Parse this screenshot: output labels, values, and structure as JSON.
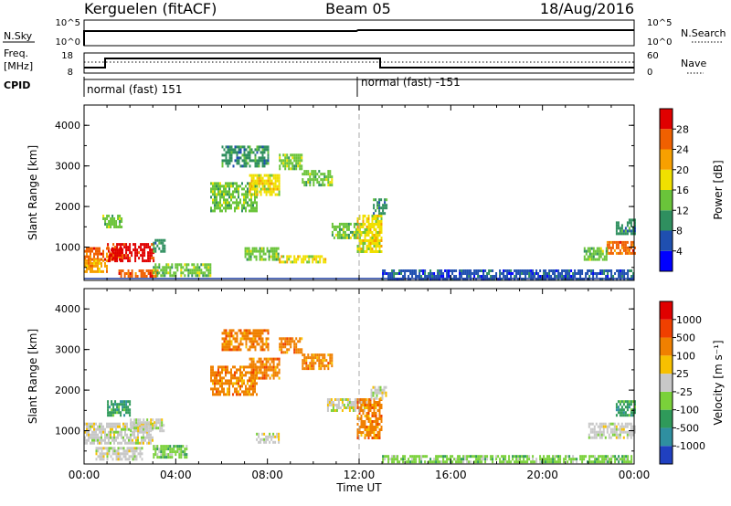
{
  "header": {
    "station": "Kerguelen (fitACF)",
    "beam": "Beam 05",
    "date": "18/Aug/2016"
  },
  "top_panels": {
    "nsky_label": "N.Sky",
    "nsky_ticks": [
      "10^5",
      "10^0"
    ],
    "nsearch_label": "N.Search",
    "nsearch_ticks": [
      "10^5",
      "10^0"
    ],
    "freq_label": "Freq.",
    "freq_unit": "[MHz]",
    "freq_ticks": [
      "18",
      "8"
    ],
    "nave_label": "Nave",
    "nave_ticks": [
      "60",
      "0"
    ],
    "cpid_label": "CPID",
    "cpid_segments": [
      {
        "label": "normal (fast) 151",
        "start_hour": 0
      },
      {
        "label": "normal (fast) -151",
        "start_hour": 12
      }
    ]
  },
  "chart_data": [
    {
      "type": "heatmap",
      "name": "power",
      "ylabel": "Slant Range [km]",
      "yticks": [
        "4000",
        "3000",
        "2000",
        "1000"
      ],
      "ylim": [
        180,
        4500
      ],
      "xlim": [
        0,
        24
      ],
      "colorbar": {
        "label": "Power [dB]",
        "ticks": [
          "28",
          "24",
          "20",
          "16",
          "12",
          "8",
          "4"
        ],
        "colors": [
          "#0000ff",
          "#1f4fb0",
          "#2f8f5f",
          "#6ac43a",
          "#f0e000",
          "#f7a000",
          "#f06000",
          "#e00000"
        ]
      },
      "patches": [
        {
          "h0": 0.0,
          "h1": 1.6,
          "r0": 700,
          "r1": 1000,
          "level": 6
        },
        {
          "h0": 1.0,
          "h1": 3.0,
          "r0": 650,
          "r1": 1100,
          "level": 7
        },
        {
          "h0": 0.0,
          "h1": 1.0,
          "r0": 400,
          "r1": 700,
          "level": 5
        },
        {
          "h0": 1.5,
          "h1": 3.2,
          "r0": 300,
          "r1": 450,
          "level": 6
        },
        {
          "h0": 3.0,
          "h1": 5.5,
          "r0": 300,
          "r1": 600,
          "level": 3
        },
        {
          "h0": 5.5,
          "h1": 7.5,
          "r0": 1900,
          "r1": 2600,
          "level": 3
        },
        {
          "h0": 7.2,
          "h1": 8.5,
          "r0": 2300,
          "r1": 2800,
          "level": 4
        },
        {
          "h0": 6.0,
          "h1": 8.0,
          "r0": 3000,
          "r1": 3500,
          "level": 2
        },
        {
          "h0": 8.5,
          "h1": 9.5,
          "r0": 2900,
          "r1": 3300,
          "level": 3
        },
        {
          "h0": 9.5,
          "h1": 10.8,
          "r0": 2500,
          "r1": 2900,
          "level": 3
        },
        {
          "h0": 7.0,
          "h1": 8.5,
          "r0": 700,
          "r1": 1000,
          "level": 3
        },
        {
          "h0": 8.5,
          "h1": 10.5,
          "r0": 600,
          "r1": 800,
          "level": 4
        },
        {
          "h0": 10.8,
          "h1": 12.0,
          "r0": 1200,
          "r1": 1600,
          "level": 3
        },
        {
          "h0": 11.9,
          "h1": 13.0,
          "r0": 900,
          "r1": 1800,
          "level": 4
        },
        {
          "h0": 12.6,
          "h1": 13.2,
          "r0": 1800,
          "r1": 2200,
          "level": 2
        },
        {
          "h0": 13.0,
          "h1": 24.0,
          "r0": 200,
          "r1": 450,
          "level": 1
        },
        {
          "h0": 22.8,
          "h1": 24.0,
          "r0": 850,
          "r1": 1150,
          "level": 6
        },
        {
          "h0": 21.8,
          "h1": 22.8,
          "r0": 700,
          "r1": 1000,
          "level": 3
        },
        {
          "h0": 23.2,
          "h1": 24.0,
          "r0": 1300,
          "r1": 1700,
          "level": 2
        },
        {
          "h0": 0.8,
          "h1": 1.6,
          "r0": 1500,
          "r1": 1800,
          "level": 3
        },
        {
          "h0": 3.0,
          "h1": 3.5,
          "r0": 900,
          "r1": 1200,
          "level": 2
        }
      ]
    },
    {
      "type": "heatmap",
      "name": "velocity",
      "ylabel": "Slant Range [km]",
      "yticks": [
        "4000",
        "3000",
        "2000",
        "1000"
      ],
      "ylim": [
        180,
        4500
      ],
      "xlabel": "Time UT",
      "xticks": [
        "00:00",
        "04:00",
        "08:00",
        "12:00",
        "16:00",
        "20:00",
        "00:00"
      ],
      "xlim": [
        0,
        24
      ],
      "colorbar": {
        "label": "Velocity [m s⁻¹]",
        "ticks": [
          "1000",
          "500",
          "100",
          "25",
          "-25",
          "-100",
          "-500",
          "-1000"
        ],
        "colors": [
          "#2040c0",
          "#2f8fa0",
          "#2f9a5a",
          "#7ad13a",
          "#c8c8c8",
          "#f7c000",
          "#f08000",
          "#f04000",
          "#e00000"
        ]
      },
      "patches": [
        {
          "h0": 0.0,
          "h1": 3.0,
          "r0": 700,
          "r1": 1200,
          "level": 4
        },
        {
          "h0": 0.5,
          "h1": 2.5,
          "r0": 300,
          "r1": 600,
          "level": 4
        },
        {
          "h0": 3.0,
          "h1": 4.5,
          "r0": 350,
          "r1": 650,
          "level": 3
        },
        {
          "h0": 1.0,
          "h1": 2.0,
          "r0": 1400,
          "r1": 1750,
          "level": 2
        },
        {
          "h0": 5.5,
          "h1": 7.5,
          "r0": 1900,
          "r1": 2600,
          "level": 6
        },
        {
          "h0": 7.2,
          "h1": 8.5,
          "r0": 2300,
          "r1": 2800,
          "level": 6
        },
        {
          "h0": 6.0,
          "h1": 8.0,
          "r0": 3000,
          "r1": 3500,
          "level": 6
        },
        {
          "h0": 8.5,
          "h1": 9.5,
          "r0": 2900,
          "r1": 3300,
          "level": 6
        },
        {
          "h0": 9.5,
          "h1": 10.8,
          "r0": 2500,
          "r1": 2900,
          "level": 6
        },
        {
          "h0": 10.6,
          "h1": 12.3,
          "r0": 1500,
          "r1": 1800,
          "level": 4
        },
        {
          "h0": 11.9,
          "h1": 13.0,
          "r0": 800,
          "r1": 1800,
          "level": 6
        },
        {
          "h0": 12.5,
          "h1": 13.2,
          "r0": 1800,
          "r1": 2100,
          "level": 4
        },
        {
          "h0": 13.0,
          "h1": 24.0,
          "r0": 200,
          "r1": 400,
          "level": 3
        },
        {
          "h0": 22.0,
          "h1": 24.0,
          "r0": 800,
          "r1": 1200,
          "level": 4
        },
        {
          "h0": 23.2,
          "h1": 24.0,
          "r0": 1400,
          "r1": 1750,
          "level": 2
        },
        {
          "h0": 7.5,
          "h1": 8.5,
          "r0": 700,
          "r1": 950,
          "level": 4
        },
        {
          "h0": 2.0,
          "h1": 3.5,
          "r0": 1000,
          "r1": 1300,
          "level": 4
        }
      ]
    }
  ]
}
